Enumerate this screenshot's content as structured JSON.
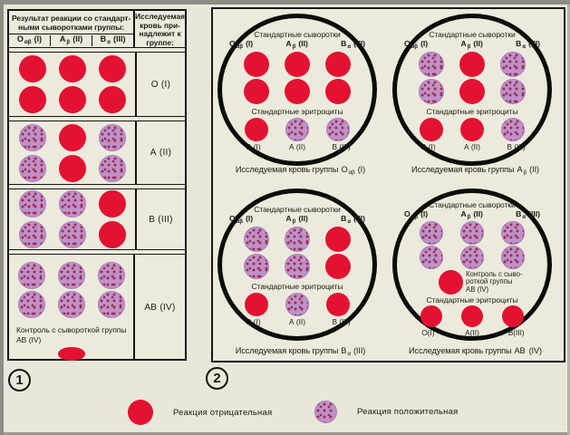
{
  "colors": {
    "negative": "#e31230",
    "positive": "#bd92c8",
    "background": "#e9e7da",
    "line": "#15150f"
  },
  "columns": [
    {
      "letter": "О",
      "sub": "αβ",
      "num": "(I)"
    },
    {
      "letter": "А",
      "sub": "β",
      "num": "(II)"
    },
    {
      "letter": "В",
      "sub": "α",
      "num": "(III)"
    }
  ],
  "panel1": {
    "number": "1",
    "title": "Результат реакции со стандарт-\nными сыворотками группы:",
    "right_header": "Исследуемая\nкровь при-\nнадлежит к\nгруппе:",
    "rows": [
      {
        "pattern": [
          "neg",
          "neg",
          "neg"
        ],
        "label": "О (I)"
      },
      {
        "pattern": [
          "pos",
          "neg",
          "pos"
        ],
        "label": "А (II)"
      },
      {
        "pattern": [
          "pos",
          "pos",
          "neg"
        ],
        "label": "В (III)"
      },
      {
        "pattern": [
          "pos",
          "pos",
          "pos"
        ],
        "label": "АВ (IV)",
        "control_note": "Контроль с сывороткой группы\nАВ (IV)"
      }
    ]
  },
  "panel2": {
    "number": "2",
    "serum_title": "Стандартные сыворотки",
    "erythro_title": "Стандартные эритроциты",
    "caption_pre": "Исследуемая кровь группы",
    "dishes": [
      {
        "serum_pattern": [
          "neg",
          "neg",
          "neg"
        ],
        "erythro_pattern": [
          "neg",
          "pos",
          "pos"
        ],
        "erythro_labels": [
          "О (I)",
          "А (II)",
          "В (III)"
        ],
        "caption": {
          "letter": "О",
          "sub": "αβ",
          "num": "(I)"
        }
      },
      {
        "serum_pattern": [
          "pos",
          "neg",
          "pos"
        ],
        "erythro_pattern": [
          "neg",
          "neg",
          "pos"
        ],
        "erythro_labels": [
          "О (I)",
          "А (II)",
          "В (III)"
        ],
        "caption": {
          "letter": "А",
          "sub": "β",
          "num": "(II)"
        }
      },
      {
        "serum_pattern": [
          "pos",
          "pos",
          "neg"
        ],
        "erythro_pattern": [
          "neg",
          "pos",
          "neg"
        ],
        "erythro_labels": [
          "О (I)",
          "А (II)",
          "В (III)"
        ],
        "caption": {
          "letter": "В",
          "sub": "α",
          "num": "(III)"
        }
      },
      {
        "serum_pattern": [
          "pos",
          "pos",
          "pos"
        ],
        "erythro_pattern": [
          "neg",
          "neg",
          "neg"
        ],
        "erythro_labels": [
          "О(I)",
          "А(II)",
          "В(III)"
        ],
        "control_note": "Контроль с сыво-\nроткой группы\nАВ (IV)",
        "caption": {
          "letter": "АВ",
          "sub": "",
          "num": "(IV)"
        }
      }
    ]
  },
  "legend": {
    "negative": "Реакция отрицательная",
    "positive": "Реакция положительная"
  }
}
